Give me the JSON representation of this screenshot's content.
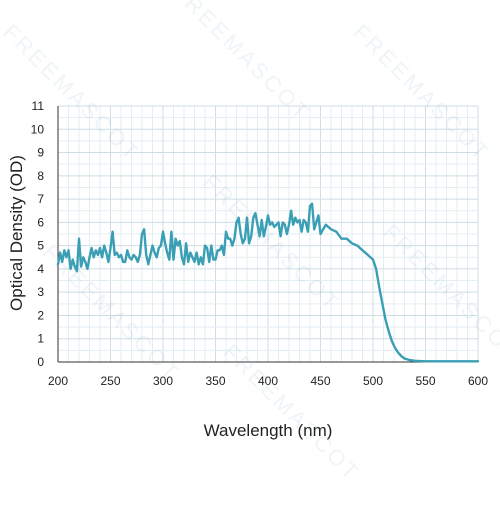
{
  "watermark": {
    "text": "FREEMASCOT"
  },
  "colors": {
    "line": "#3a9fb5",
    "grid_minor": "#e3eef3",
    "grid_major": "#cfdde5",
    "axis": "#333333"
  },
  "chart_data": {
    "type": "line",
    "title": "",
    "xlabel": "Wavelength (nm)",
    "ylabel": "Optical Density (OD)",
    "xlim": [
      200,
      600
    ],
    "ylim": [
      0,
      11
    ],
    "xticks": [
      200,
      250,
      300,
      350,
      400,
      450,
      500,
      550,
      600
    ],
    "yticks": [
      0,
      1,
      2,
      3,
      4,
      5,
      6,
      7,
      8,
      9,
      10,
      11
    ],
    "grid": true,
    "legend": "none",
    "series": [
      {
        "x": [
          200,
          202,
          204,
          206,
          208,
          210,
          212,
          214,
          216,
          218,
          220,
          222,
          224,
          226,
          228,
          230,
          232,
          234,
          236,
          238,
          240,
          242,
          244,
          246,
          248,
          250,
          252,
          254,
          256,
          258,
          260,
          262,
          264,
          266,
          268,
          270,
          272,
          274,
          276,
          278,
          280,
          282,
          284,
          286,
          288,
          290,
          292,
          294,
          296,
          298,
          300,
          302,
          304,
          306,
          308,
          310,
          312,
          314,
          316,
          318,
          320,
          322,
          324,
          326,
          328,
          330,
          332,
          334,
          336,
          338,
          340,
          342,
          344,
          346,
          348,
          350,
          352,
          354,
          356,
          358,
          360,
          362,
          364,
          366,
          368,
          370,
          372,
          374,
          376,
          378,
          380,
          382,
          384,
          386,
          388,
          390,
          392,
          394,
          396,
          398,
          400,
          402,
          404,
          406,
          408,
          410,
          412,
          414,
          416,
          418,
          420,
          422,
          424,
          426,
          428,
          430,
          432,
          434,
          436,
          438,
          440,
          442,
          444,
          446,
          448,
          450,
          455,
          460,
          465,
          470,
          475,
          480,
          485,
          490,
          495,
          500,
          503,
          506,
          509,
          512,
          515,
          518,
          521,
          524,
          527,
          530,
          535,
          540,
          545,
          550,
          560,
          570,
          580,
          590,
          600
        ],
        "y": [
          4.2,
          4.7,
          4.3,
          4.8,
          4.5,
          4.8,
          4.0,
          4.4,
          4.1,
          3.9,
          5.3,
          4.1,
          4.5,
          4.3,
          4.0,
          4.5,
          4.9,
          4.5,
          4.8,
          4.6,
          4.9,
          4.5,
          5.0,
          4.7,
          4.3,
          4.9,
          5.6,
          4.6,
          4.7,
          4.5,
          4.6,
          4.3,
          4.3,
          4.8,
          4.5,
          4.4,
          4.6,
          4.5,
          4.3,
          4.6,
          5.5,
          5.7,
          4.6,
          4.2,
          4.6,
          5.0,
          4.7,
          4.5,
          4.9,
          5.0,
          5.6,
          5.1,
          4.7,
          4.4,
          5.6,
          4.4,
          5.3,
          5.0,
          5.2,
          4.5,
          4.2,
          5.1,
          4.3,
          4.7,
          4.5,
          4.3,
          4.7,
          4.2,
          4.5,
          4.2,
          5.0,
          4.9,
          4.3,
          5.0,
          4.4,
          4.4,
          4.8,
          4.8,
          5.0,
          4.6,
          5.6,
          5.3,
          5.3,
          5.0,
          5.3,
          6.0,
          6.2,
          5.5,
          5.1,
          5.3,
          6.2,
          5.1,
          5.4,
          6.2,
          6.4,
          5.9,
          5.4,
          6.1,
          5.4,
          5.8,
          6.3,
          5.9,
          6.0,
          5.8,
          5.9,
          6.0,
          5.4,
          6.0,
          5.9,
          5.5,
          5.9,
          6.5,
          5.9,
          6.2,
          6.0,
          6.1,
          5.6,
          6.1,
          6.0,
          5.6,
          6.7,
          6.8,
          5.7,
          6.0,
          6.3,
          5.5,
          5.9,
          5.7,
          5.6,
          5.3,
          5.3,
          5.1,
          5.0,
          4.8,
          4.6,
          4.4,
          4.0,
          3.2,
          2.5,
          1.8,
          1.3,
          0.9,
          0.6,
          0.4,
          0.25,
          0.15,
          0.08,
          0.05,
          0.04,
          0.03,
          0.03,
          0.03,
          0.03,
          0.03,
          0.03
        ]
      }
    ]
  }
}
